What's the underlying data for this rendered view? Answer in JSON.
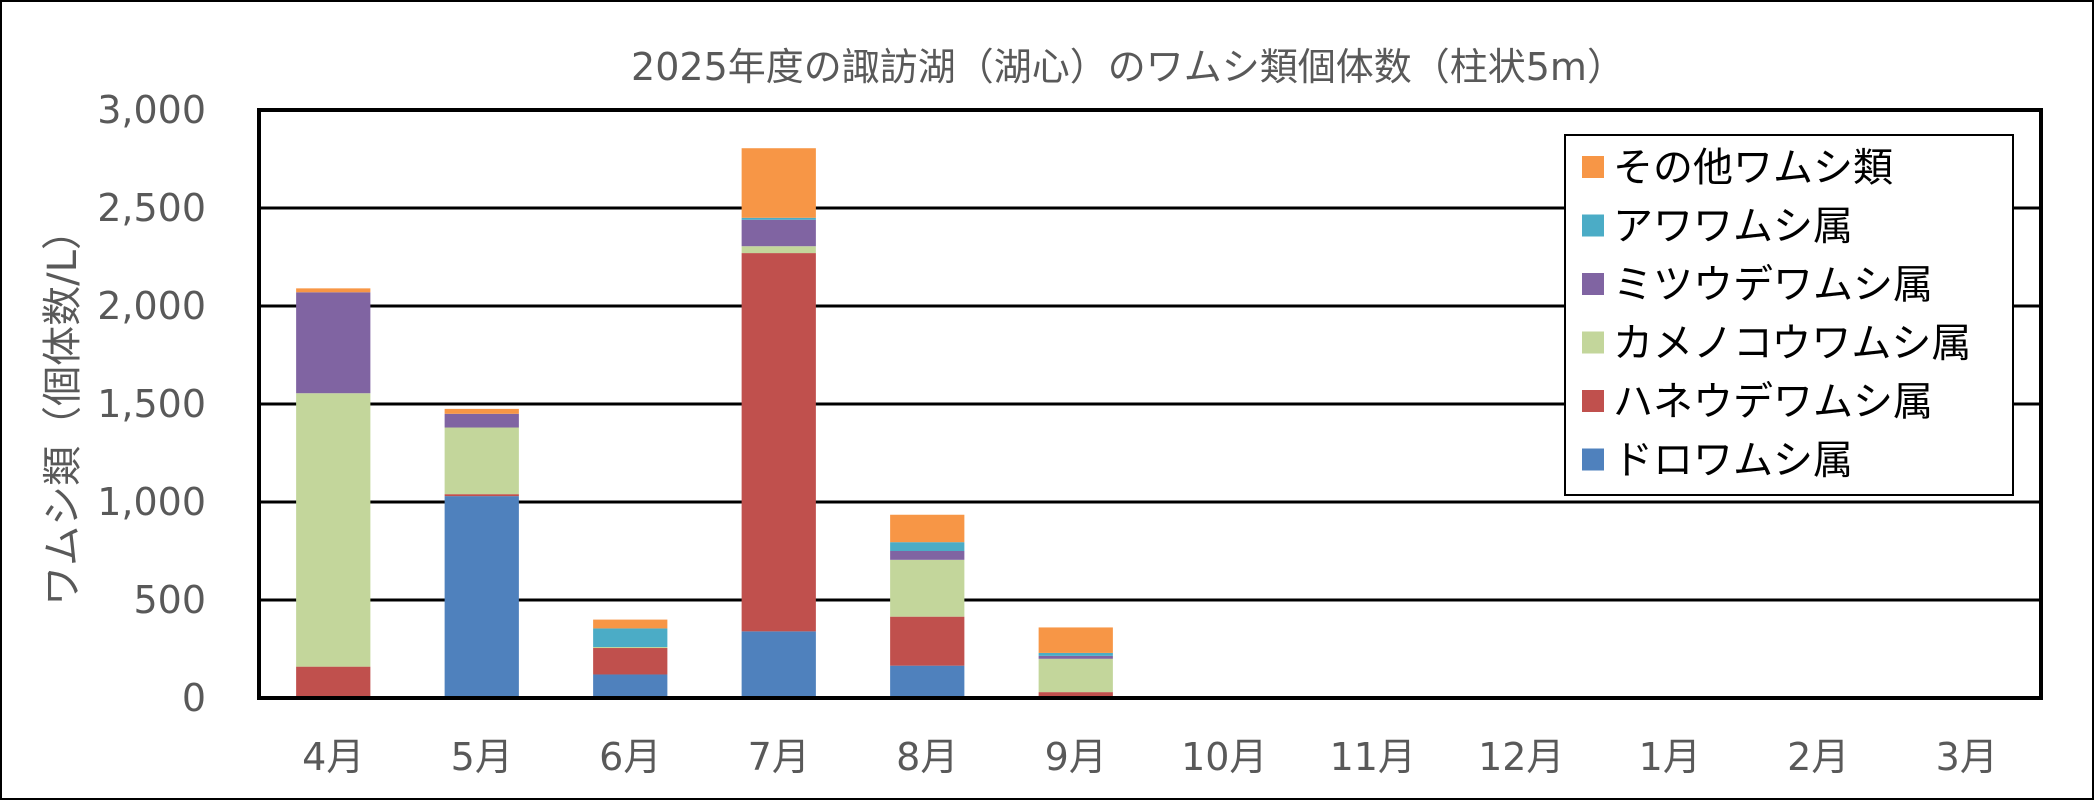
{
  "chart_data": {
    "type": "bar",
    "stacked": true,
    "title": "2025年度の諏訪湖（湖心）のワムシ類個体数（柱状5m）",
    "xlabel": "",
    "ylabel": "ワムシ類（個体数/L）",
    "ylim": [
      0,
      3000
    ],
    "yticks": [
      0,
      500,
      1000,
      1500,
      2000,
      2500,
      3000
    ],
    "ytick_labels": [
      "0",
      "500",
      "1,000",
      "1,500",
      "2,000",
      "2,500",
      "3,000"
    ],
    "grid": true,
    "legend_position": "top-right",
    "categories": [
      "4月",
      "5月",
      "6月",
      "7月",
      "8月",
      "9月",
      "10月",
      "11月",
      "12月",
      "1月",
      "2月",
      "3月"
    ],
    "series": [
      {
        "name": "ドロワムシ属",
        "color": "#4F81BD",
        "values": [
          0,
          1030,
          120,
          340,
          165,
          0,
          null,
          null,
          null,
          null,
          null,
          null
        ]
      },
      {
        "name": "ハネウデワムシ属",
        "color": "#C0504D",
        "values": [
          160,
          10,
          135,
          1930,
          250,
          30,
          null,
          null,
          null,
          null,
          null,
          null
        ]
      },
      {
        "name": "カメノコウワムシ属",
        "color": "#C3D69B",
        "values": [
          1395,
          340,
          5,
          35,
          290,
          170,
          null,
          null,
          null,
          null,
          null,
          null
        ]
      },
      {
        "name": "ミツウデワムシ属",
        "color": "#8064A2",
        "values": [
          515,
          70,
          0,
          135,
          45,
          15,
          null,
          null,
          null,
          null,
          null,
          null
        ]
      },
      {
        "name": "アワワムシ属",
        "color": "#4BACC6",
        "values": [
          0,
          0,
          95,
          10,
          45,
          15,
          null,
          null,
          null,
          null,
          null,
          null
        ]
      },
      {
        "name": "その他ワムシ類",
        "color": "#F79646",
        "values": [
          20,
          25,
          45,
          355,
          140,
          130,
          null,
          null,
          null,
          null,
          null,
          null
        ]
      }
    ]
  }
}
